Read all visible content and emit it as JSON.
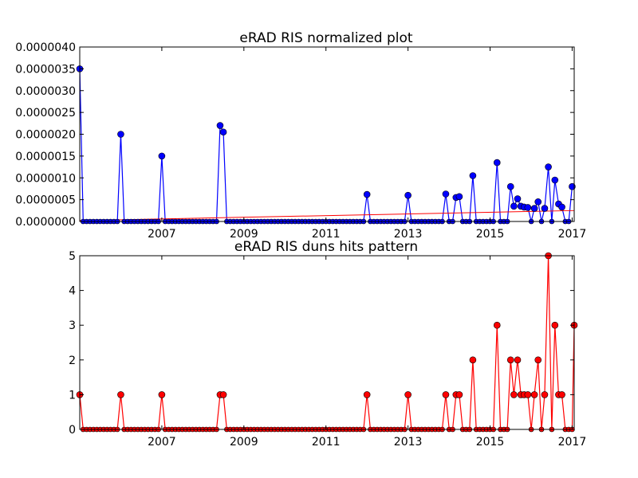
{
  "chart_data": [
    {
      "type": "line",
      "title": "eRAD RIS normalized plot",
      "xlabel": "",
      "ylabel": "",
      "xlim": [
        2005.0,
        2017.05
      ],
      "ylim": [
        0,
        4e-06
      ],
      "x_ticks": [
        2007,
        2009,
        2011,
        2013,
        2015,
        2017
      ],
      "x_tick_labels": [
        "2007",
        "2009",
        "2011",
        "2013",
        "2015",
        "2017"
      ],
      "y_ticks": [
        0,
        5e-07,
        1e-06,
        1.5e-06,
        2e-06,
        2.5e-06,
        3e-06,
        3.5e-06,
        4e-06
      ],
      "y_tick_labels": [
        "0.0000000",
        "0.0000005",
        "0.0000010",
        "0.0000015",
        "0.0000020",
        "0.0000025",
        "0.0000030",
        "0.0000035",
        "0.0000040"
      ],
      "grid": false,
      "colors": {
        "series": "#0000ff",
        "trend": "#ff0000"
      },
      "series": [
        {
          "values": [
            [
              2005.0,
              3.5e-06
            ],
            [
              2006.0,
              2e-06
            ],
            [
              2007.0,
              1.5e-06
            ],
            [
              2008.42,
              2.2e-06
            ],
            [
              2008.5,
              2.05e-06
            ],
            [
              2012.0,
              6.2e-07
            ],
            [
              2013.0,
              6e-07
            ],
            [
              2013.92,
              6.3e-07
            ],
            [
              2014.17,
              5.5e-07
            ],
            [
              2014.25,
              5.7e-07
            ],
            [
              2014.58,
              1.05e-06
            ],
            [
              2015.17,
              1.35e-06
            ],
            [
              2015.5,
              8e-07
            ],
            [
              2015.58,
              3.5e-07
            ],
            [
              2015.67,
              5.2e-07
            ],
            [
              2015.75,
              3.5e-07
            ],
            [
              2015.83,
              3.3e-07
            ],
            [
              2015.92,
              3.2e-07
            ],
            [
              2016.08,
              3e-07
            ],
            [
              2016.17,
              4.5e-07
            ],
            [
              2016.33,
              3e-07
            ],
            [
              2016.42,
              1.25e-06
            ],
            [
              2016.58,
              9.5e-07
            ],
            [
              2016.67,
              4e-07
            ],
            [
              2016.75,
              3.3e-07
            ],
            [
              2017.0,
              8e-07
            ]
          ]
        }
      ],
      "trend_line": [
        [
          2005.0,
          2e-08
        ],
        [
          2017.05,
          2.5e-07
        ]
      ]
    },
    {
      "type": "line",
      "title": "eRAD RIS duns hits pattern",
      "xlabel": "",
      "ylabel": "",
      "xlim": [
        2005.0,
        2017.05
      ],
      "ylim": [
        0,
        5
      ],
      "x_ticks": [
        2007,
        2009,
        2011,
        2013,
        2015,
        2017
      ],
      "x_tick_labels": [
        "2007",
        "2009",
        "2011",
        "2013",
        "2015",
        "2017"
      ],
      "y_ticks": [
        0,
        1,
        2,
        3,
        4,
        5
      ],
      "y_tick_labels": [
        "0",
        "1",
        "2",
        "3",
        "4",
        "5"
      ],
      "grid": false,
      "colors": {
        "series": "#ff0000"
      },
      "series": [
        {
          "values": [
            [
              2005.0,
              1
            ],
            [
              2006.0,
              1
            ],
            [
              2007.0,
              1
            ],
            [
              2008.42,
              1
            ],
            [
              2008.5,
              1
            ],
            [
              2012.0,
              1
            ],
            [
              2013.0,
              1
            ],
            [
              2013.92,
              1
            ],
            [
              2014.17,
              1
            ],
            [
              2014.25,
              1
            ],
            [
              2014.58,
              2
            ],
            [
              2015.17,
              3
            ],
            [
              2015.5,
              2
            ],
            [
              2015.58,
              1
            ],
            [
              2015.67,
              2
            ],
            [
              2015.75,
              1
            ],
            [
              2015.83,
              1
            ],
            [
              2015.92,
              1
            ],
            [
              2016.08,
              1
            ],
            [
              2016.17,
              2
            ],
            [
              2016.33,
              1
            ],
            [
              2016.42,
              5
            ],
            [
              2016.58,
              3
            ],
            [
              2016.67,
              1
            ],
            [
              2016.75,
              1
            ],
            [
              2017.05,
              3
            ]
          ]
        }
      ]
    }
  ]
}
